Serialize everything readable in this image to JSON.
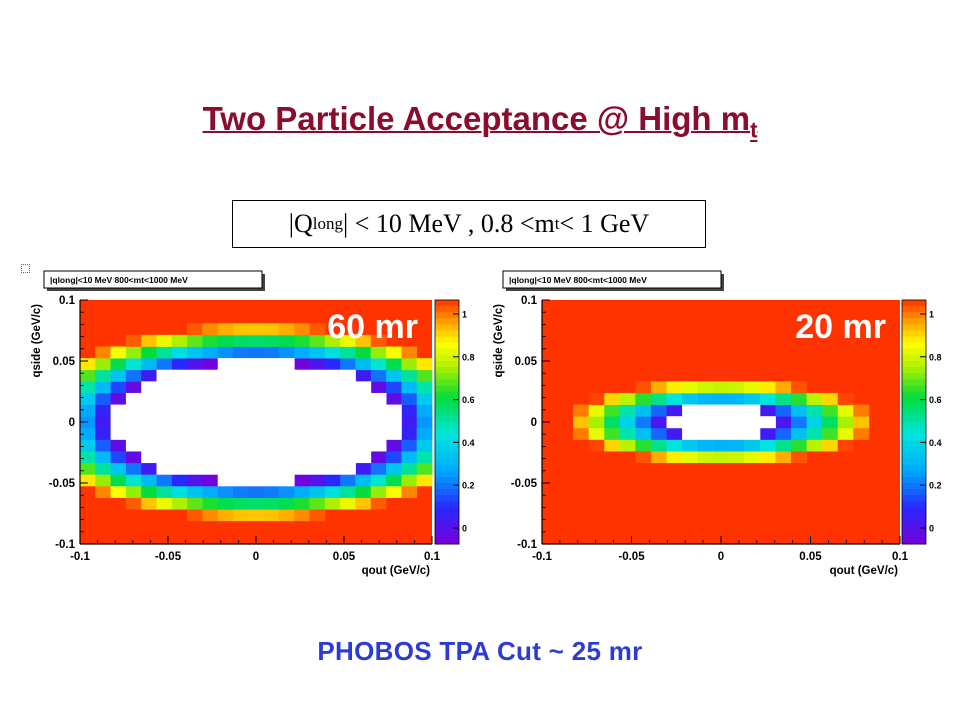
{
  "title": {
    "main": "Two Particle Acceptance @ High m",
    "sub": "t"
  },
  "condition": {
    "q": "|Q",
    "q_sub": "long",
    "mid": "| < 10 MeV , 0.8 <m",
    "m_sub": "t",
    "end": " < 1 GeV"
  },
  "footer": "PHOBOS  TPA Cut ~ 25 mr",
  "colors": {
    "background": "#ff3300",
    "title": "#8b0d2e",
    "footer": "#2c3bd6",
    "annotation": "#ffffff"
  },
  "chart_data": [
    {
      "type": "heatmap",
      "panel_label": "|qlong|<10 MeV 800<mt<1000 MeV",
      "annotation": "60 mr",
      "xlabel": "qout (GeV/c)",
      "ylabel": "qside (GeV/c)",
      "xlim": [
        -0.1,
        0.1
      ],
      "ylim": [
        -0.1,
        0.1
      ],
      "x_ticks": [
        "-0.1",
        "-0.05",
        "0",
        "0.05",
        "0.1"
      ],
      "y_ticks": [
        "0.1",
        "0.05",
        "0",
        "-0.05",
        "-0.1"
      ],
      "colorbar_ticks": [
        "1",
        "0.8",
        "0.6",
        "0.4",
        "0.2",
        "0"
      ],
      "colorbar_range": [
        0,
        1
      ],
      "hole": {
        "center": [
          0,
          0
        ],
        "semi_axis_x": 0.082,
        "semi_axis_y": 0.05,
        "ring_width": 0.03,
        "min_value": 0
      }
    },
    {
      "type": "heatmap",
      "panel_label": "|qlong|<10 MeV 800<mt<1000 MeV",
      "annotation": "20 mr",
      "xlabel": "qout (GeV/c)",
      "ylabel": "qside (GeV/c)",
      "xlim": [
        -0.1,
        0.1
      ],
      "ylim": [
        -0.1,
        0.1
      ],
      "x_ticks": [
        "-0.1",
        "-0.05",
        "0",
        "0.05",
        "0.1"
      ],
      "y_ticks": [
        "0.1",
        "0.05",
        "0",
        "-0.05",
        "-0.1"
      ],
      "colorbar_ticks": [
        "1",
        "0.8",
        "0.6",
        "0.4",
        "0.2",
        "0"
      ],
      "colorbar_range": [
        0,
        1
      ],
      "hole": {
        "center": [
          0,
          0
        ],
        "semi_axis_x": 0.03,
        "semi_axis_y": 0.012,
        "ring_width": 0.022,
        "min_value": 0
      }
    }
  ]
}
